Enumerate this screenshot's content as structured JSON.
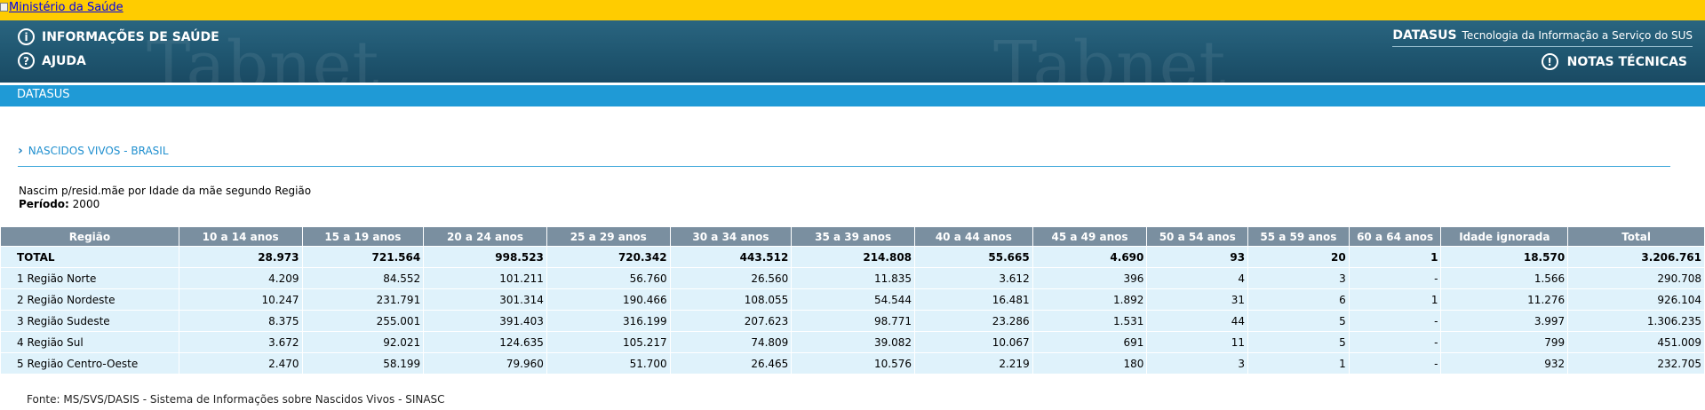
{
  "topbar": {
    "broken_image_alt": "Ministério da Saúde"
  },
  "header": {
    "watermark": "Tabnet",
    "link_info": "INFORMAÇÕES DE SAÚDE",
    "link_ajuda": "AJUDA",
    "brand_name": "DATASUS",
    "brand_tagline": "Tecnologia da Informação a Serviço do SUS",
    "notas": "NOTAS TÉCNICAS",
    "info_icon_glyph": "i",
    "help_icon_glyph": "?",
    "alert_icon_glyph": "!"
  },
  "bluebar": {
    "label": "DATASUS"
  },
  "section": {
    "chevron": "›",
    "title": "NASCIDOS VIVOS - BRASIL"
  },
  "query": {
    "title": "Nascim p/resid.mãe por Idade da mãe segundo Região",
    "period_label": "Período:",
    "period_value": "2000"
  },
  "table": {
    "headers": [
      "Região",
      "10 a 14 anos",
      "15 a 19 anos",
      "20 a 24 anos",
      "25 a 29 anos",
      "30 a 34 anos",
      "35 a 39 anos",
      "40 a 44 anos",
      "45 a 49 anos",
      "50 a 54 anos",
      "55 a 59 anos",
      "60 a 64 anos",
      "Idade ignorada",
      "Total"
    ],
    "rows": [
      [
        "TOTAL",
        "28.973",
        "721.564",
        "998.523",
        "720.342",
        "443.512",
        "214.808",
        "55.665",
        "4.690",
        "93",
        "20",
        "1",
        "18.570",
        "3.206.761"
      ],
      [
        "1 Região Norte",
        "4.209",
        "84.552",
        "101.211",
        "56.760",
        "26.560",
        "11.835",
        "3.612",
        "396",
        "4",
        "3",
        "-",
        "1.566",
        "290.708"
      ],
      [
        "2 Região Nordeste",
        "10.247",
        "231.791",
        "301.314",
        "190.466",
        "108.055",
        "54.544",
        "16.481",
        "1.892",
        "31",
        "6",
        "1",
        "11.276",
        "926.104"
      ],
      [
        "3 Região Sudeste",
        "8.375",
        "255.001",
        "391.403",
        "316.199",
        "207.623",
        "98.771",
        "23.286",
        "1.531",
        "44",
        "5",
        "-",
        "3.997",
        "1.306.235"
      ],
      [
        "4 Região Sul",
        "3.672",
        "92.021",
        "124.635",
        "105.217",
        "74.809",
        "39.082",
        "10.067",
        "691",
        "11",
        "5",
        "-",
        "799",
        "451.009"
      ],
      [
        "5 Região Centro-Oeste",
        "2.470",
        "58.199",
        "79.960",
        "51.700",
        "26.465",
        "10.576",
        "2.219",
        "180",
        "3",
        "1",
        "-",
        "932",
        "232.705"
      ]
    ]
  },
  "footer": {
    "fonte": "Fonte: MS/SVS/DASIS - Sistema de Informações sobre Nascidos Vivos - SINASC"
  },
  "colors": {
    "topbar": "#ffcc00",
    "header": "#1f5670",
    "bluebar": "#1f9ad6",
    "table_header": "#7a8fa0",
    "table_cell": "#dff2fb",
    "section_title": "#1f8fcf"
  }
}
